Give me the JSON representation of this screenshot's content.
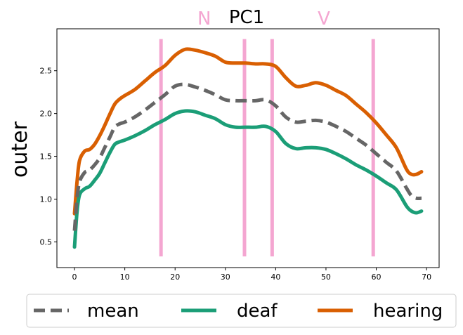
{
  "chart_data": {
    "type": "line",
    "title": "PC1",
    "xlabel": "",
    "ylabel": "outer",
    "xlim": [
      -3.5,
      72.5
    ],
    "ylim": [
      0.2,
      2.99
    ],
    "xticks": [
      0,
      10,
      20,
      30,
      40,
      50,
      60,
      70
    ],
    "yticks": [
      0.5,
      1.0,
      1.5,
      2.0,
      2.5
    ],
    "ytick_labels": [
      "0.5",
      "1.0",
      "1.5",
      "2.0",
      "2.5"
    ],
    "grid": false,
    "legend_position": "bottom, outside plot",
    "vlines": {
      "color": "#f4a6d1",
      "x": [
        17.2,
        33.8,
        39.3,
        59.4
      ],
      "ymin": 0.33,
      "ymax": 2.87
    },
    "annotations": [
      {
        "text": "N",
        "x": 25.8,
        "color": "#f4a6d1"
      },
      {
        "text": "V",
        "x": 49.6,
        "color": "#f4a6d1"
      }
    ],
    "x": [
      0,
      0.5,
      1,
      2,
      3,
      4,
      5,
      6,
      7,
      8,
      9,
      10,
      12,
      14,
      16,
      18,
      20,
      22,
      24,
      26,
      28,
      30,
      32,
      34,
      36,
      38,
      40,
      42,
      44,
      46,
      48,
      50,
      52,
      54,
      56,
      58,
      60,
      62,
      64,
      66,
      67,
      68,
      69
    ],
    "series": [
      {
        "name": "mean",
        "color": "#666666",
        "style": "dashed",
        "values": [
          0.63,
          1.0,
          1.2,
          1.31,
          1.34,
          1.4,
          1.48,
          1.6,
          1.72,
          1.84,
          1.88,
          1.9,
          1.96,
          2.04,
          2.13,
          2.22,
          2.32,
          2.34,
          2.31,
          2.27,
          2.22,
          2.16,
          2.15,
          2.15,
          2.15,
          2.16,
          2.09,
          1.96,
          1.9,
          1.91,
          1.92,
          1.9,
          1.85,
          1.79,
          1.71,
          1.63,
          1.53,
          1.43,
          1.33,
          1.13,
          1.04,
          1.01,
          1.01
        ]
      },
      {
        "name": "deaf",
        "color": "#1b9e77",
        "style": "solid",
        "values": [
          0.44,
          0.85,
          1.05,
          1.12,
          1.15,
          1.22,
          1.3,
          1.42,
          1.54,
          1.64,
          1.67,
          1.69,
          1.74,
          1.8,
          1.87,
          1.93,
          2.0,
          2.03,
          2.02,
          1.98,
          1.94,
          1.87,
          1.84,
          1.84,
          1.84,
          1.85,
          1.79,
          1.65,
          1.59,
          1.6,
          1.6,
          1.58,
          1.53,
          1.47,
          1.4,
          1.34,
          1.27,
          1.19,
          1.11,
          0.92,
          0.86,
          0.84,
          0.86
        ]
      },
      {
        "name": "hearing",
        "color": "#d95f02",
        "style": "solid",
        "values": [
          0.83,
          1.2,
          1.45,
          1.56,
          1.58,
          1.64,
          1.74,
          1.86,
          1.99,
          2.11,
          2.17,
          2.21,
          2.28,
          2.38,
          2.48,
          2.56,
          2.68,
          2.75,
          2.74,
          2.71,
          2.67,
          2.6,
          2.59,
          2.59,
          2.58,
          2.58,
          2.55,
          2.42,
          2.32,
          2.33,
          2.36,
          2.33,
          2.27,
          2.21,
          2.11,
          2.01,
          1.89,
          1.75,
          1.6,
          1.35,
          1.29,
          1.29,
          1.32
        ]
      }
    ]
  }
}
